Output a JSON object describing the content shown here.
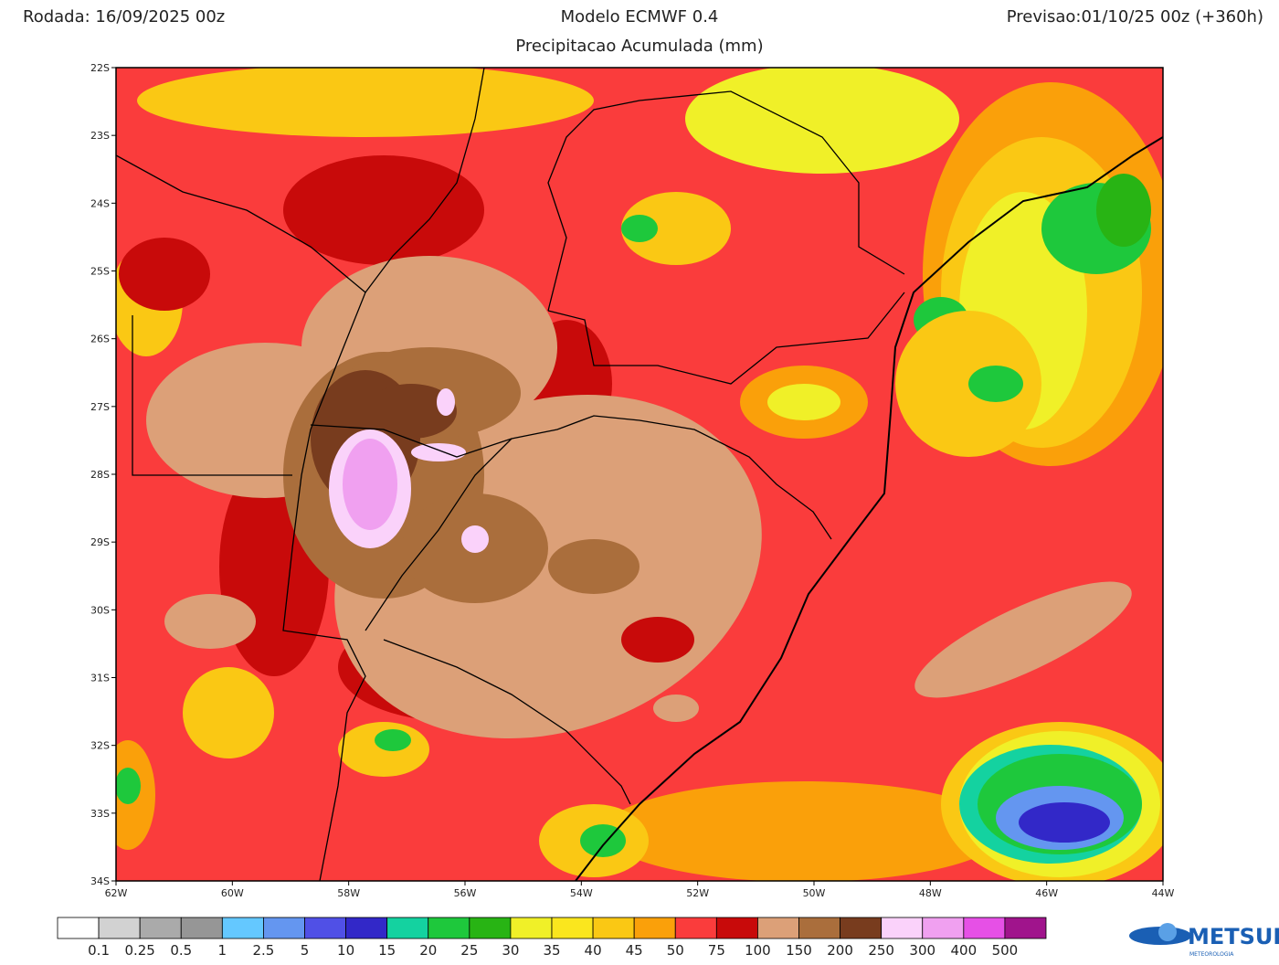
{
  "header": {
    "run": "Rodada: 16/09/2025 00z",
    "model": "Modelo ECMWF 0.4",
    "forecast": "Previsao:01/10/25 00z (+360h)",
    "subtitle": "Precipitacao Acumulada (mm)"
  },
  "map": {
    "lat_labels": [
      "22S",
      "23S",
      "24S",
      "25S",
      "26S",
      "27S",
      "28S",
      "29S",
      "30S",
      "31S",
      "32S",
      "33S",
      "34S"
    ],
    "lon_labels": [
      "62W",
      "60W",
      "58W",
      "56W",
      "54W",
      "52W",
      "50W",
      "48W",
      "46W",
      "44W"
    ]
  },
  "colorbar": {
    "colors": [
      "#ffffff",
      "#d2d2d2",
      "#aaaaaa",
      "#969696",
      "#64c8ff",
      "#6496f0",
      "#5050e6",
      "#3228c8",
      "#14d2a0",
      "#1ec83c",
      "#28b414",
      "#f0f028",
      "#fae61e",
      "#fac814",
      "#faa00a",
      "#fa3c3c",
      "#c80a0a",
      "#dca078",
      "#aa6e3c",
      "#783c1e",
      "#fad2fa",
      "#f0a0f0",
      "#e650e6",
      "#a0148c"
    ],
    "labels": [
      "0.1",
      "0.25",
      "0.5",
      "1",
      "2.5",
      "5",
      "10",
      "15",
      "20",
      "25",
      "30",
      "35",
      "40",
      "45",
      "50",
      "75",
      "100",
      "150",
      "200",
      "250",
      "300",
      "400",
      "500"
    ]
  },
  "logo": {
    "name": "METSUL",
    "tagline": "METEOROLOGIA"
  }
}
